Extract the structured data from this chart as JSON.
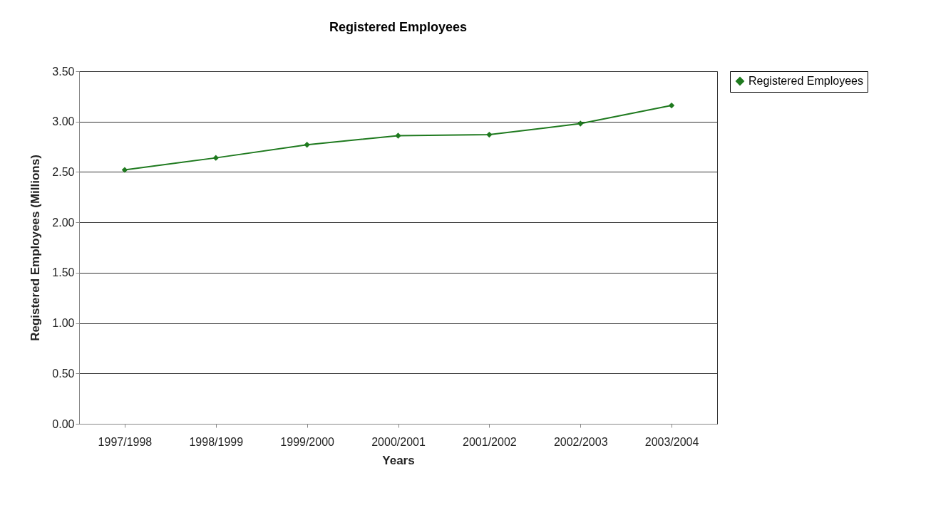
{
  "chart_data": {
    "type": "line",
    "title": "Registered Employees",
    "xlabel": "Years",
    "ylabel": "Registered Employees (Millions)",
    "categories": [
      "1997/1998",
      "1998/1999",
      "1999/2000",
      "2000/2001",
      "2001/2002",
      "2002/2003",
      "2003/2004"
    ],
    "series": [
      {
        "name": "Registered Employees",
        "color": "#1f7a1f",
        "values": [
          2.52,
          2.64,
          2.77,
          2.86,
          2.87,
          2.98,
          3.16
        ]
      }
    ],
    "ylim": [
      0,
      3.5
    ],
    "yticks": [
      {
        "value": 0,
        "label": "0.00"
      },
      {
        "value": 0.5,
        "label": "0.50"
      },
      {
        "value": 1,
        "label": "1.00"
      },
      {
        "value": 1.5,
        "label": "1.50"
      },
      {
        "value": 2,
        "label": "2.00"
      },
      {
        "value": 2.5,
        "label": "2.50"
      },
      {
        "value": 3,
        "label": "3.00"
      },
      {
        "value": 3.5,
        "label": "3.50"
      }
    ],
    "grid": "y",
    "legend": "right",
    "marker": "diamond",
    "line_style": "solid"
  }
}
